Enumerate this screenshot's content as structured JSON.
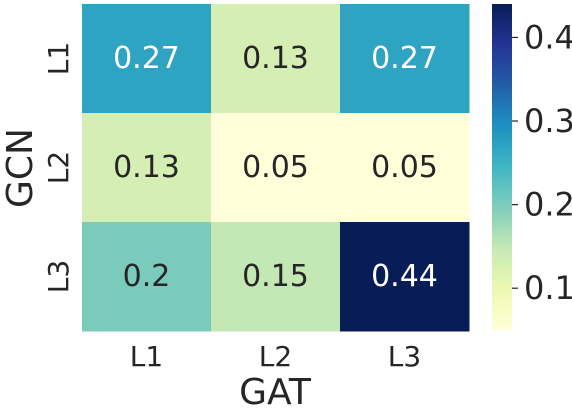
{
  "chart_data": {
    "type": "heatmap",
    "xlabel": "GAT",
    "ylabel": "GCN",
    "x_categories": [
      "L1",
      "L2",
      "L3"
    ],
    "y_categories": [
      "L1",
      "L2",
      "L3"
    ],
    "values": [
      [
        0.27,
        0.13,
        0.27
      ],
      [
        0.13,
        0.05,
        0.05
      ],
      [
        0.2,
        0.15,
        0.44
      ]
    ],
    "cell_labels": [
      [
        "0.27",
        "0.13",
        "0.27"
      ],
      [
        "0.13",
        "0.05",
        "0.05"
      ],
      [
        "0.2",
        "0.15",
        "0.44"
      ]
    ],
    "colormap": "YlGnBu",
    "vmin": 0.05,
    "vmax": 0.44,
    "colorbar": {
      "ticks": [
        0.1,
        0.2,
        0.3,
        0.4
      ],
      "tick_labels": [
        "0.1",
        "0.2",
        "0.3",
        "0.4"
      ]
    }
  }
}
